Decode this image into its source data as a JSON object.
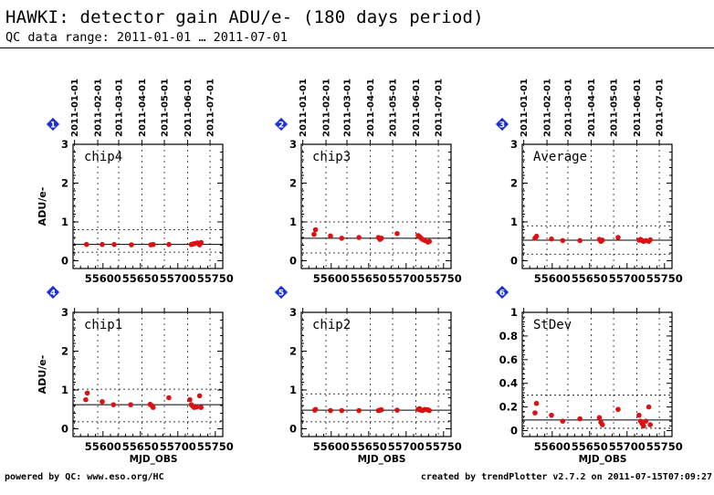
{
  "header": {
    "title": "HAWKI: detector gain ADU/e- (180 days period)",
    "subtitle": "QC data range: 2011-01-01 … 2011-07-01"
  },
  "footer": {
    "left": "powered by QC: www.eso.org/HC",
    "right": "created by trendPlotter v2.7.2 on 2011-07-15T07:09:27"
  },
  "style": {
    "point_color": "#dd1111",
    "badge_color": "#1a2fd6"
  },
  "top_ticks": [
    "2011-01-01",
    "2011-02-01",
    "2011-03-01",
    "2011-04-01",
    "2011-05-01",
    "2011-06-01",
    "2011-07-01"
  ],
  "chart_data": [
    {
      "type": "scatter",
      "panel": "1",
      "label": "chip4",
      "ylabel": "ADU/e-",
      "xlabel": "",
      "xlim": [
        55560,
        55760
      ],
      "ylim": [
        -0.2,
        3
      ],
      "yticks": [
        0,
        1,
        2,
        3
      ],
      "xticks": [
        55600,
        55650,
        55700,
        55750
      ],
      "show_top_labels": true,
      "median": 0.42,
      "band": [
        0.22,
        0.8
      ],
      "points": [
        [
          55578,
          0.42
        ],
        [
          55599,
          0.42
        ],
        [
          55615,
          0.42
        ],
        [
          55638,
          0.41
        ],
        [
          55664,
          0.41
        ],
        [
          55667,
          0.42
        ],
        [
          55688,
          0.42
        ],
        [
          55718,
          0.42
        ],
        [
          55720,
          0.43
        ],
        [
          55722,
          0.44
        ],
        [
          55726,
          0.46
        ],
        [
          55729,
          0.41
        ],
        [
          55731,
          0.47
        ]
      ]
    },
    {
      "type": "scatter",
      "panel": "2",
      "label": "chip3",
      "ylabel": "",
      "xlabel": "",
      "xlim": [
        55560,
        55760
      ],
      "ylim": [
        -0.2,
        3
      ],
      "yticks": [
        0,
        1,
        2,
        3
      ],
      "xticks": [
        55600,
        55650,
        55700,
        55750
      ],
      "show_top_labels": true,
      "median": 0.58,
      "band": [
        0.2,
        1.0
      ],
      "points": [
        [
          55577,
          0.68
        ],
        [
          55579,
          0.8
        ],
        [
          55599,
          0.64
        ],
        [
          55614,
          0.58
        ],
        [
          55637,
          0.6
        ],
        [
          55663,
          0.6
        ],
        [
          55665,
          0.55
        ],
        [
          55667,
          0.58
        ],
        [
          55688,
          0.7
        ],
        [
          55716,
          0.65
        ],
        [
          55718,
          0.62
        ],
        [
          55720,
          0.58
        ],
        [
          55722,
          0.55
        ],
        [
          55725,
          0.52
        ],
        [
          55729,
          0.48
        ],
        [
          55731,
          0.5
        ]
      ]
    },
    {
      "type": "scatter",
      "panel": "3",
      "label": "Average",
      "ylabel": "",
      "xlabel": "",
      "xlim": [
        55560,
        55760
      ],
      "ylim": [
        -0.2,
        3
      ],
      "yticks": [
        0,
        1,
        2,
        3
      ],
      "xticks": [
        55600,
        55650,
        55700,
        55750
      ],
      "show_top_labels": true,
      "median": 0.53,
      "band": [
        0.17,
        0.9
      ],
      "points": [
        [
          55577,
          0.58
        ],
        [
          55579,
          0.63
        ],
        [
          55599,
          0.56
        ],
        [
          55614,
          0.52
        ],
        [
          55637,
          0.52
        ],
        [
          55663,
          0.55
        ],
        [
          55665,
          0.5
        ],
        [
          55667,
          0.53
        ],
        [
          55688,
          0.6
        ],
        [
          55716,
          0.53
        ],
        [
          55718,
          0.55
        ],
        [
          55720,
          0.52
        ],
        [
          55722,
          0.5
        ],
        [
          55725,
          0.52
        ],
        [
          55729,
          0.5
        ],
        [
          55731,
          0.54
        ]
      ]
    },
    {
      "type": "scatter",
      "panel": "4",
      "label": "chip1",
      "ylabel": "ADU/e-",
      "xlabel": "MJD_OBS",
      "xlim": [
        55560,
        55760
      ],
      "ylim": [
        -0.2,
        3
      ],
      "yticks": [
        0,
        1,
        2,
        3
      ],
      "xticks": [
        55600,
        55650,
        55700,
        55750
      ],
      "show_top_labels": false,
      "median": 0.62,
      "band": [
        0.18,
        1.02
      ],
      "points": [
        [
          55577,
          0.75
        ],
        [
          55579,
          0.92
        ],
        [
          55599,
          0.7
        ],
        [
          55614,
          0.62
        ],
        [
          55637,
          0.62
        ],
        [
          55663,
          0.63
        ],
        [
          55665,
          0.6
        ],
        [
          55667,
          0.55
        ],
        [
          55688,
          0.8
        ],
        [
          55716,
          0.75
        ],
        [
          55718,
          0.62
        ],
        [
          55720,
          0.58
        ],
        [
          55722,
          0.55
        ],
        [
          55725,
          0.56
        ],
        [
          55729,
          0.85
        ],
        [
          55731,
          0.55
        ]
      ]
    },
    {
      "type": "scatter",
      "panel": "5",
      "label": "chip2",
      "ylabel": "",
      "xlabel": "MJD_OBS",
      "xlim": [
        55560,
        55760
      ],
      "ylim": [
        -0.2,
        3
      ],
      "yticks": [
        0,
        1,
        2,
        3
      ],
      "xticks": [
        55600,
        55650,
        55700,
        55750
      ],
      "show_top_labels": false,
      "median": 0.48,
      "band": [
        0.18,
        0.9
      ],
      "points": [
        [
          55578,
          0.48
        ],
        [
          55579,
          0.5
        ],
        [
          55599,
          0.47
        ],
        [
          55614,
          0.47
        ],
        [
          55637,
          0.47
        ],
        [
          55663,
          0.47
        ],
        [
          55665,
          0.48
        ],
        [
          55667,
          0.49
        ],
        [
          55688,
          0.48
        ],
        [
          55716,
          0.5
        ],
        [
          55718,
          0.52
        ],
        [
          55720,
          0.48
        ],
        [
          55722,
          0.47
        ],
        [
          55725,
          0.5
        ],
        [
          55729,
          0.49
        ],
        [
          55731,
          0.47
        ]
      ]
    },
    {
      "type": "scatter",
      "panel": "6",
      "label": "StDev",
      "ylabel": "",
      "xlabel": "MJD_OBS",
      "xlim": [
        55560,
        55760
      ],
      "ylim": [
        -0.05,
        1
      ],
      "yticks": [
        0,
        0.2,
        0.4,
        0.6,
        0.8,
        1
      ],
      "ytick_labels": [
        "0",
        "0.2",
        "0.4",
        "0.6",
        "0.8",
        "1"
      ],
      "xticks": [
        55600,
        55650,
        55700,
        55750
      ],
      "show_top_labels": false,
      "median": 0.09,
      "band": [
        0.02,
        0.3
      ],
      "points": [
        [
          55577,
          0.15
        ],
        [
          55579,
          0.23
        ],
        [
          55599,
          0.13
        ],
        [
          55614,
          0.08
        ],
        [
          55637,
          0.1
        ],
        [
          55663,
          0.11
        ],
        [
          55665,
          0.07
        ],
        [
          55667,
          0.05
        ],
        [
          55688,
          0.18
        ],
        [
          55716,
          0.13
        ],
        [
          55718,
          0.08
        ],
        [
          55720,
          0.06
        ],
        [
          55722,
          0.04
        ],
        [
          55725,
          0.08
        ],
        [
          55729,
          0.2
        ],
        [
          55731,
          0.05
        ]
      ]
    }
  ]
}
